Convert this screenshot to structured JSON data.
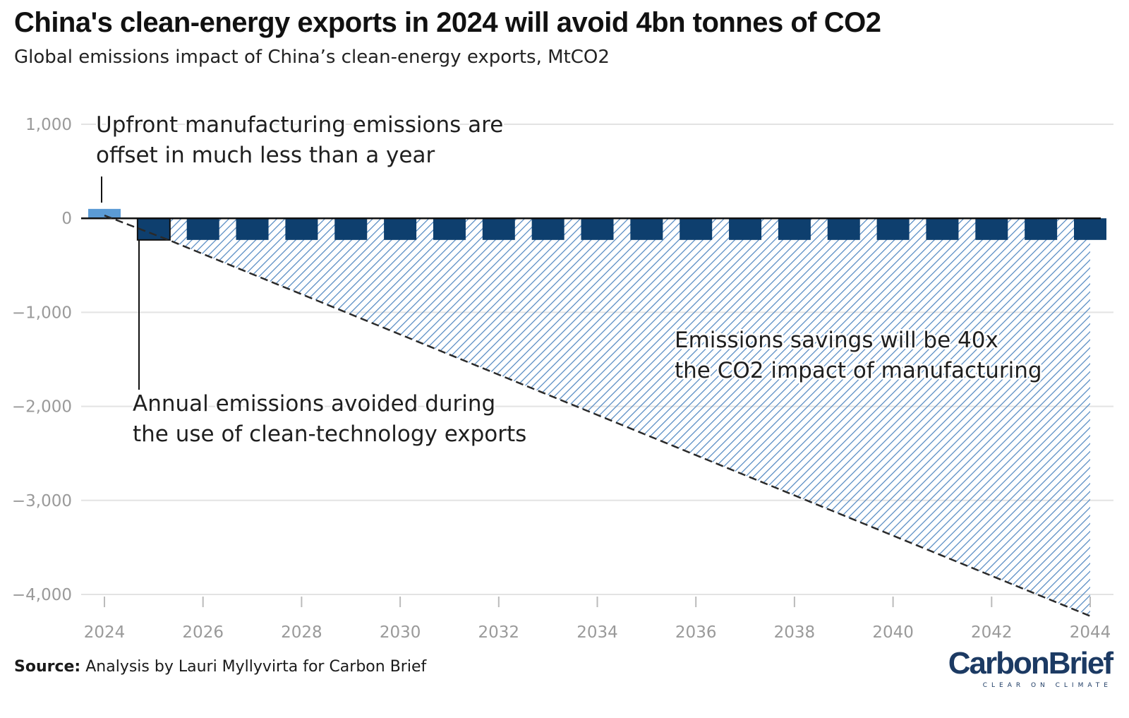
{
  "header": {
    "title": "China's clean-energy exports in 2024 will avoid 4bn tonnes of CO2",
    "subtitle": "Global emissions impact of China’s clean-energy exports, MtCO2"
  },
  "footer": {
    "source_label": "Source:",
    "source_text": "Analysis by Lauri Myllyvirta for Carbon Brief",
    "brand": "CarbonBrief",
    "brand_tagline": "CLEAR ON CLIMATE"
  },
  "colors": {
    "manufacturing_bar": "#5b9bd5",
    "avoided_bar": "#0e3f6e",
    "hatch": "#4f86c0",
    "cumulative_line": "#2a2a2a",
    "grid": "#e3e3e3",
    "axis": "#111111",
    "tick_text": "#9a9a9a"
  },
  "chart_data": {
    "type": "bar",
    "title": "China's clean-energy exports in 2024 will avoid 4bn tonnes of CO2",
    "subtitle": "Global emissions impact of China’s clean-energy exports, MtCO2",
    "xlabel": "",
    "ylabel": "MtCO2",
    "ylim": [
      -4200,
      1000
    ],
    "xlim": [
      2023.8,
      2044.2
    ],
    "y_ticks": [
      1000,
      0,
      -1000,
      -2000,
      -3000,
      -4000
    ],
    "y_tick_labels": [
      "1,000",
      "0",
      "−1,000",
      "−2,000",
      "−3,000",
      "−4,000"
    ],
    "x_ticks": [
      2024,
      2026,
      2028,
      2030,
      2032,
      2034,
      2036,
      2038,
      2040,
      2042,
      2044
    ],
    "x_tick_labels": [
      "2024",
      "2026",
      "2028",
      "2030",
      "2032",
      "2034",
      "2036",
      "2038",
      "2040",
      "2042",
      "2044"
    ],
    "grid": true,
    "series": [
      {
        "name": "Upfront manufacturing emissions",
        "kind": "bar",
        "x": [
          2024
        ],
        "values": [
          100
        ]
      },
      {
        "name": "Annual emissions avoided",
        "kind": "bar",
        "x": [
          2025,
          2026,
          2027,
          2028,
          2029,
          2030,
          2031,
          2032,
          2033,
          2034,
          2035,
          2036,
          2037,
          2038,
          2039,
          2040,
          2041,
          2042,
          2043,
          2044
        ],
        "values": [
          -230,
          -230,
          -230,
          -230,
          -230,
          -230,
          -230,
          -230,
          -230,
          -230,
          -230,
          -230,
          -230,
          -230,
          -230,
          -230,
          -230,
          -230,
          -230,
          -230
        ]
      },
      {
        "name": "Cumulative emissions savings",
        "kind": "area-line",
        "x": [
          2024,
          2025.3,
          2044
        ],
        "values": [
          30,
          -230,
          -4230
        ]
      }
    ],
    "annotations": [
      {
        "id": "manufacturing",
        "lines": [
          "Upfront manufacturing emissions are",
          "offset in much less than a year"
        ]
      },
      {
        "id": "avoided",
        "lines": [
          "Annual emissions avoided during",
          "the use of clean-technology exports"
        ]
      },
      {
        "id": "savings",
        "lines": [
          "Emissions savings will be 40x",
          "the CO2 impact of manufacturing"
        ]
      }
    ]
  }
}
